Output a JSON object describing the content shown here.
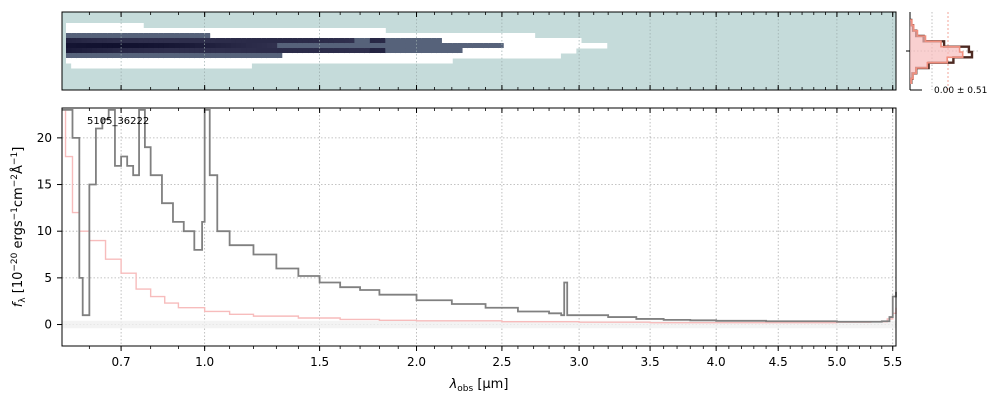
{
  "figure": {
    "object_id": "5105_36222",
    "profile_annotation": "0.00 ± 0.51"
  },
  "chart_data": [
    {
      "panel": "2d-spectrum",
      "type": "heatmap",
      "description": "2D spectrum image, trace bright (dark) at blue end fading toward red",
      "colormap": [
        "#ffffff",
        "#c5dbda",
        "#0c0c1a"
      ]
    },
    {
      "panel": "spatial-profile",
      "type": "line",
      "annotation": "0.00 ± 0.51",
      "series": [
        {
          "color": "#4d2a22",
          "profile": [
            0.02,
            0.05,
            0.1,
            0.22,
            0.55,
            0.95,
            1.0,
            0.7,
            0.3,
            0.1,
            0.04,
            0.02
          ]
        },
        {
          "color": "#f08f7f",
          "profile": [
            0.03,
            0.06,
            0.12,
            0.25,
            0.5,
            0.8,
            0.85,
            0.6,
            0.28,
            0.1,
            0.05,
            0.02
          ]
        }
      ]
    },
    {
      "panel": "1d-spectrum",
      "type": "line",
      "xlabel": "λobs [µm]",
      "ylabel": "fλ [10⁻²⁰ ergs⁻¹cm⁻²Å⁻¹]",
      "x_scale": "sqrt",
      "xlim": [
        0.52,
        5.53
      ],
      "ylim": [
        -2.3,
        23.2
      ],
      "x_ticks": [
        0.7,
        1.0,
        1.5,
        2.0,
        2.5,
        3.0,
        3.5,
        4.0,
        4.5,
        5.0,
        5.5
      ],
      "x_tick_labels": [
        "0.7",
        "1.0",
        "1.5",
        "2.0",
        "2.5",
        "3.0",
        "3.5",
        "4.0",
        "4.5",
        "5.0",
        "5.5"
      ],
      "y_ticks": [
        0,
        5,
        10,
        15,
        20
      ],
      "y_tick_labels": [
        "0",
        "5",
        "10",
        "15",
        "20"
      ],
      "grid": true,
      "series": [
        {
          "color": "#808080",
          "style": "steps",
          "points": [
            [
              0.52,
              23
            ],
            [
              0.55,
              20
            ],
            [
              0.57,
              5
            ],
            [
              0.58,
              1
            ],
            [
              0.6,
              15
            ],
            [
              0.62,
              21
            ],
            [
              0.64,
              22
            ],
            [
              0.66,
              23
            ],
            [
              0.68,
              17
            ],
            [
              0.7,
              18
            ],
            [
              0.72,
              17
            ],
            [
              0.74,
              16
            ],
            [
              0.76,
              23
            ],
            [
              0.78,
              19
            ],
            [
              0.8,
              16
            ],
            [
              0.84,
              13
            ],
            [
              0.88,
              11
            ],
            [
              0.92,
              10
            ],
            [
              0.96,
              8
            ],
            [
              0.99,
              11
            ],
            [
              1.0,
              23
            ],
            [
              1.02,
              16
            ],
            [
              1.05,
              10
            ],
            [
              1.1,
              8.5
            ],
            [
              1.2,
              7.5
            ],
            [
              1.3,
              6.0
            ],
            [
              1.4,
              5.2
            ],
            [
              1.5,
              4.5
            ],
            [
              1.6,
              4.0
            ],
            [
              1.7,
              3.7
            ],
            [
              1.8,
              3.2
            ],
            [
              2.0,
              2.6
            ],
            [
              2.2,
              2.2
            ],
            [
              2.4,
              1.8
            ],
            [
              2.6,
              1.4
            ],
            [
              2.8,
              1.2
            ],
            [
              2.88,
              1.0
            ],
            [
              2.9,
              4.5
            ],
            [
              2.92,
              1.0
            ],
            [
              3.0,
              1.0
            ],
            [
              3.2,
              0.8
            ],
            [
              3.4,
              0.6
            ],
            [
              3.6,
              0.5
            ],
            [
              3.8,
              0.45
            ],
            [
              4.0,
              0.4
            ],
            [
              4.2,
              0.4
            ],
            [
              4.4,
              0.35
            ],
            [
              4.6,
              0.35
            ],
            [
              4.8,
              0.35
            ],
            [
              5.0,
              0.3
            ],
            [
              5.2,
              0.3
            ],
            [
              5.4,
              0.35
            ],
            [
              5.47,
              0.8
            ],
            [
              5.5,
              3.0
            ],
            [
              5.53,
              3.5
            ]
          ]
        },
        {
          "color": "#f7bcbc",
          "style": "steps",
          "points": [
            [
              0.52,
              23
            ],
            [
              0.53,
              18
            ],
            [
              0.55,
              12
            ],
            [
              0.57,
              10
            ],
            [
              0.6,
              9
            ],
            [
              0.65,
              7
            ],
            [
              0.7,
              5.5
            ],
            [
              0.75,
              3.8
            ],
            [
              0.8,
              3.0
            ],
            [
              0.85,
              2.3
            ],
            [
              0.9,
              1.8
            ],
            [
              1.0,
              1.4
            ],
            [
              1.1,
              1.1
            ],
            [
              1.2,
              0.9
            ],
            [
              1.4,
              0.7
            ],
            [
              1.6,
              0.55
            ],
            [
              1.8,
              0.45
            ],
            [
              2.0,
              0.4
            ],
            [
              2.5,
              0.3
            ],
            [
              3.0,
              0.25
            ],
            [
              3.5,
              0.2
            ],
            [
              4.0,
              0.2
            ],
            [
              4.5,
              0.2
            ],
            [
              5.0,
              0.25
            ],
            [
              5.3,
              0.3
            ],
            [
              5.45,
              0.6
            ],
            [
              5.5,
              1.2
            ],
            [
              5.53,
              1.8
            ]
          ]
        }
      ],
      "annotations": [
        "5105_36222"
      ]
    }
  ]
}
